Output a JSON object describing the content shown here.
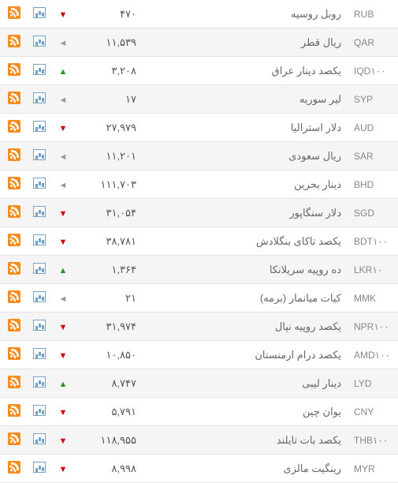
{
  "rows": [
    {
      "code": "RUB",
      "name": "روبل روسیه",
      "value": "۴۷۰",
      "trend": "down"
    },
    {
      "code": "QAR",
      "name": "ریال قطر",
      "value": "۱۱,۵۳۹",
      "trend": "side"
    },
    {
      "code": "IQD۱۰۰",
      "name": "یکصد دینار عراق",
      "value": "۳,۲۰۸",
      "trend": "up"
    },
    {
      "code": "SYP",
      "name": "لیر سوریه",
      "value": "۱۷",
      "trend": "side"
    },
    {
      "code": "AUD",
      "name": "دلار استرالیا",
      "value": "۲۷,۹۷۹",
      "trend": "down"
    },
    {
      "code": "SAR",
      "name": "ریال سعودی",
      "value": "۱۱,۲۰۱",
      "trend": "side"
    },
    {
      "code": "BHD",
      "name": "دینار بحرین",
      "value": "۱۱۱,۷۰۳",
      "trend": "side"
    },
    {
      "code": "SGD",
      "name": "دلار سنگاپور",
      "value": "۳۱,۰۵۴",
      "trend": "down"
    },
    {
      "code": "BDT۱۰۰",
      "name": "یکصد تاکای بنگلادش",
      "value": "۳۸,۷۸۱",
      "trend": "down"
    },
    {
      "code": "LKR۱۰",
      "name": "ده روپیه سریلانکا",
      "value": "۱,۳۶۴",
      "trend": "up"
    },
    {
      "code": "MMK",
      "name": "کیات میانمار (برمه)",
      "value": "۲۱",
      "trend": "side"
    },
    {
      "code": "NPR۱۰۰",
      "name": "یکصد روپیه نپال",
      "value": "۳۱,۹۷۴",
      "trend": "down"
    },
    {
      "code": "AMD۱۰۰",
      "name": "یکصد درام ارمنستان",
      "value": "۱۰,۸۵۰",
      "trend": "down"
    },
    {
      "code": "LYD",
      "name": "دینار لیبی",
      "value": "۸,۷۴۷",
      "trend": "up"
    },
    {
      "code": "CNY",
      "name": "یوان چین",
      "value": "۵,۷۹۱",
      "trend": "down"
    },
    {
      "code": "THB۱۰۰",
      "name": "یکصد بات تایلند",
      "value": "۱۱۸,۹۵۵",
      "trend": "down"
    },
    {
      "code": "MYR",
      "name": "رینگیت مالزی",
      "value": "۸,۹۹۸",
      "trend": "down"
    }
  ],
  "trend_glyph": {
    "up": "▲",
    "down": "▼",
    "side": "◄"
  },
  "trend_class": {
    "up": "arrow-up",
    "down": "arrow-down",
    "side": "arrow-side"
  }
}
